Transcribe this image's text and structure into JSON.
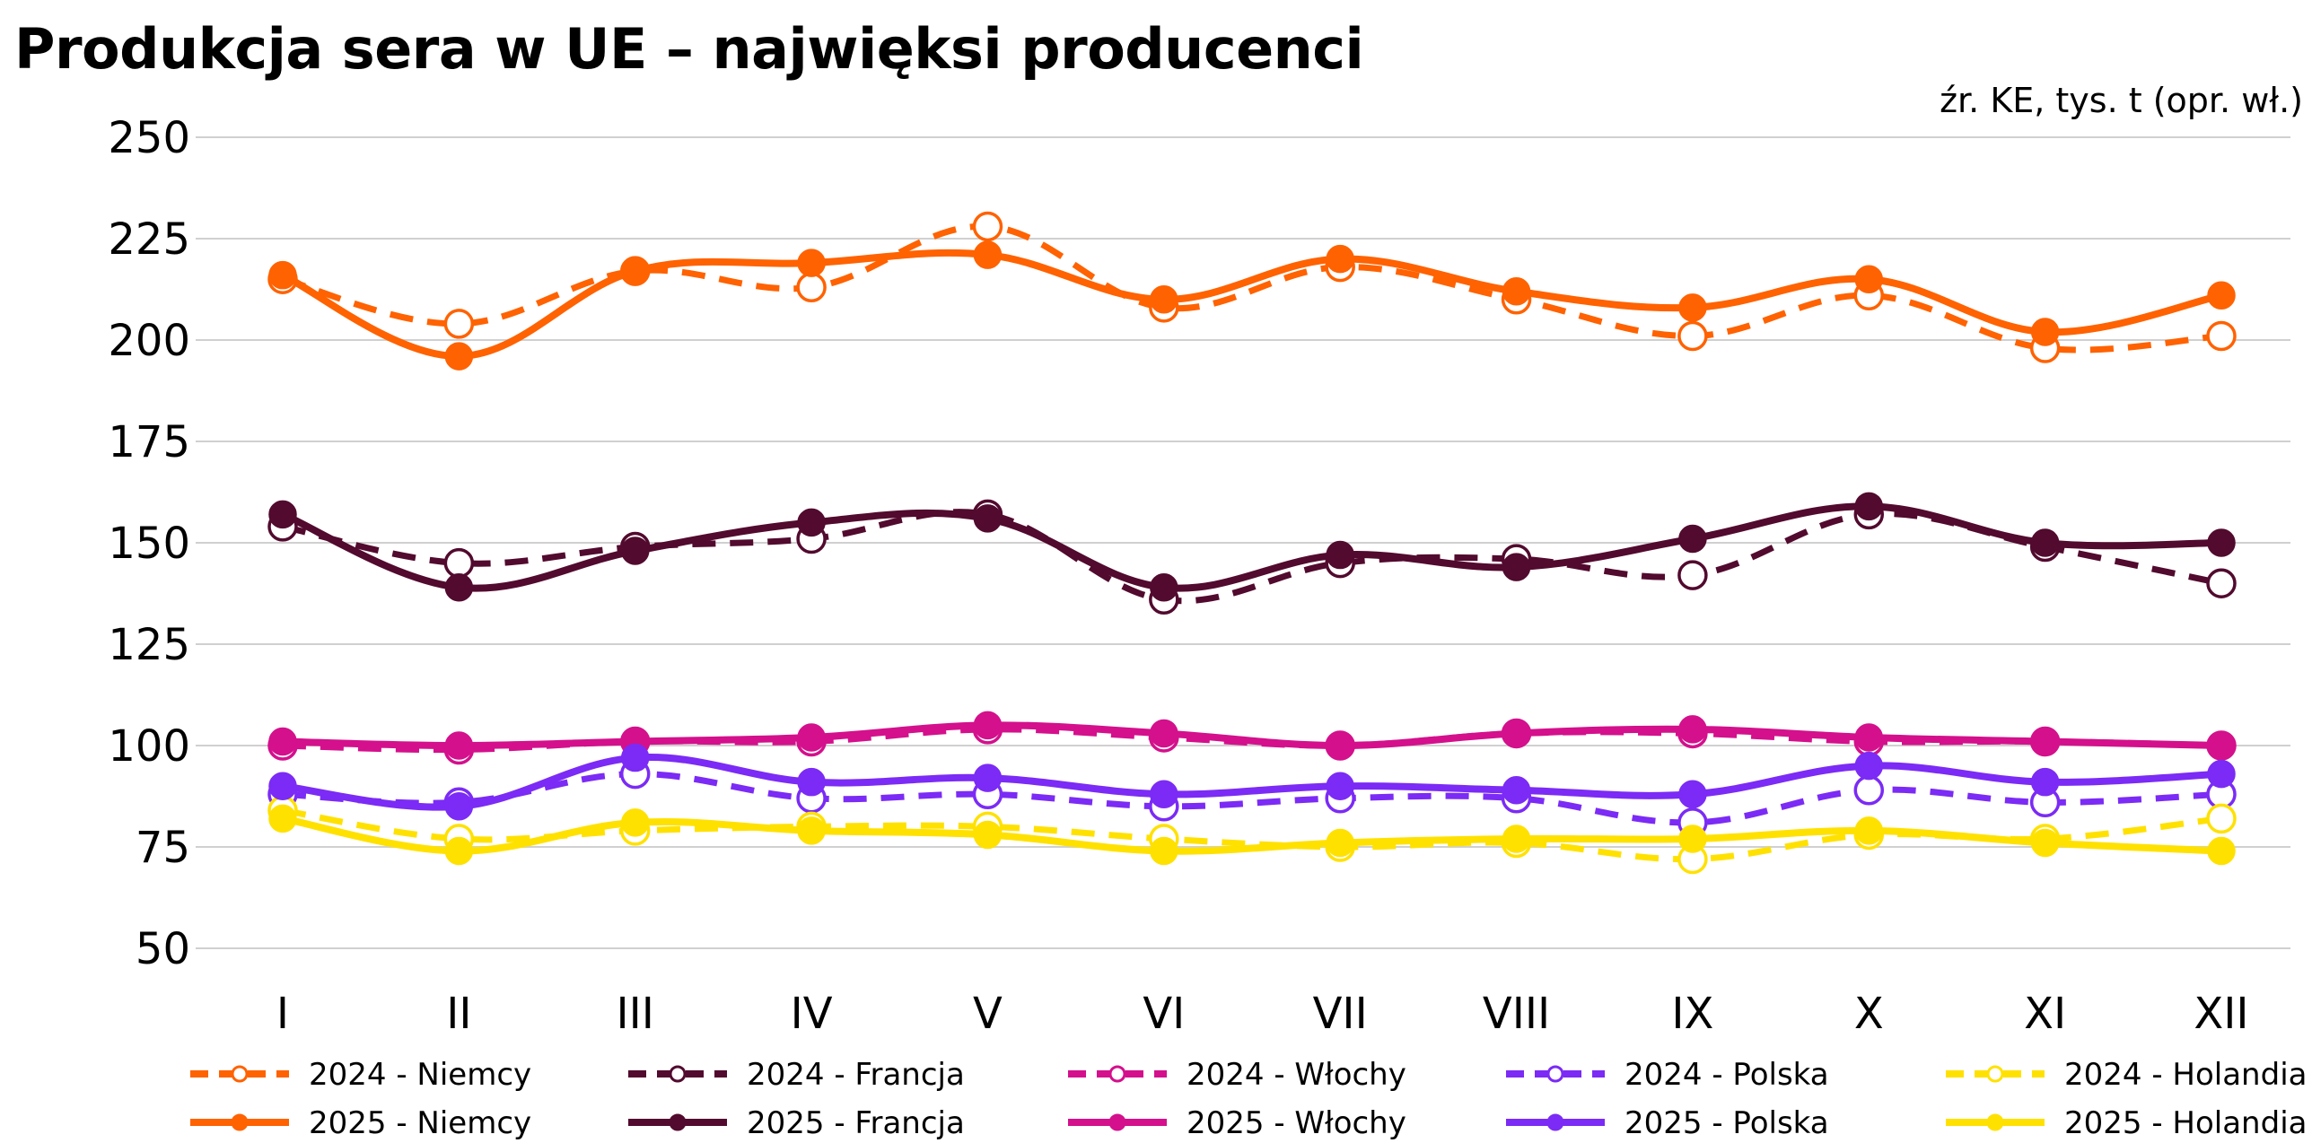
{
  "title": "Produkcja sera w UE – najwięksi producenci",
  "source": "źr. KE, tys. t (opr. wł.)",
  "chart_data": {
    "type": "line",
    "categories": [
      "I",
      "II",
      "III",
      "IV",
      "V",
      "VI",
      "VII",
      "VIII",
      "IX",
      "X",
      "XI",
      "XII"
    ],
    "ylim": [
      50,
      250
    ],
    "yticks": [
      "250",
      "225",
      "200",
      "175",
      "150",
      "125",
      "100",
      "75",
      "50"
    ],
    "grid": true,
    "legend_position": "bottom",
    "series": [
      {
        "name": "2024 - Niemcy",
        "color": "#FF6200",
        "style": "dashed",
        "marker": "open",
        "values": [
          215,
          204,
          217,
          213,
          228,
          208,
          218,
          210,
          201,
          211,
          198,
          201
        ]
      },
      {
        "name": "2024 - Francja",
        "color": "#520A2E",
        "style": "dashed",
        "marker": "open",
        "values": [
          154,
          145,
          149,
          151,
          157,
          136,
          145,
          146,
          142,
          157,
          149,
          140
        ]
      },
      {
        "name": "2024 - Włochy",
        "color": "#D4108C",
        "style": "dashed",
        "marker": "open",
        "values": [
          100,
          99,
          101,
          101,
          104,
          102,
          100,
          103,
          103,
          101,
          101,
          100
        ]
      },
      {
        "name": "2024 - Polska",
        "color": "#7B2BF5",
        "style": "dashed",
        "marker": "open",
        "values": [
          88,
          86,
          93,
          87,
          88,
          85,
          87,
          87,
          81,
          89,
          86,
          88
        ]
      },
      {
        "name": "2024 - Holandia",
        "color": "#FFE100",
        "style": "dashed",
        "marker": "open",
        "values": [
          84,
          77,
          79,
          80,
          80,
          77,
          75,
          76,
          72,
          78,
          77,
          82
        ]
      },
      {
        "name": "2025 - Niemcy",
        "color": "#FF6200",
        "style": "solid",
        "marker": "filled",
        "values": [
          216,
          196,
          217,
          219,
          221,
          210,
          220,
          212,
          208,
          215,
          202,
          211
        ]
      },
      {
        "name": "2025 - Francja",
        "color": "#520A2E",
        "style": "solid",
        "marker": "filled",
        "values": [
          157,
          139,
          148,
          155,
          156,
          139,
          147,
          144,
          151,
          159,
          150,
          150
        ]
      },
      {
        "name": "2025 - Włochy",
        "color": "#D4108C",
        "style": "solid",
        "marker": "filled",
        "values": [
          101,
          100,
          101,
          102,
          105,
          103,
          100,
          103,
          104,
          102,
          101,
          100
        ]
      },
      {
        "name": "2025 - Polska",
        "color": "#7B2BF5",
        "style": "solid",
        "marker": "filled",
        "values": [
          90,
          85,
          97,
          91,
          92,
          88,
          90,
          89,
          88,
          95,
          91,
          93
        ]
      },
      {
        "name": "2025 - Holandia",
        "color": "#FFE100",
        "style": "solid",
        "marker": "filled",
        "values": [
          82,
          74,
          81,
          79,
          78,
          74,
          76,
          77,
          77,
          79,
          76,
          74
        ]
      }
    ]
  }
}
